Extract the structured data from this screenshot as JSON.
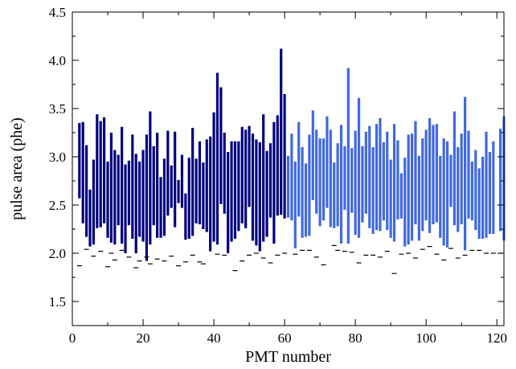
{
  "chart_data": {
    "type": "bar",
    "subtype": "floating-range",
    "title": "",
    "xlabel": "PMT number",
    "ylabel": "pulse area (phe)",
    "xlim": [
      0,
      122
    ],
    "ylim": [
      1.25,
      4.5
    ],
    "xticks": [
      0,
      20,
      40,
      60,
      80,
      100,
      120
    ],
    "yticks": [
      1.5,
      2.0,
      2.5,
      3.0,
      3.5,
      4.0,
      4.5
    ],
    "xtick_labels": [
      "0",
      "20",
      "40",
      "60",
      "80",
      "100",
      "120"
    ],
    "ytick_labels": [
      "1.5",
      "2.0",
      "2.5",
      "3.0",
      "3.5",
      "4.0",
      "4.5"
    ],
    "grid": false,
    "legend": "none",
    "series": [
      {
        "color": "#000080",
        "x": [
          2,
          3,
          4,
          5,
          6,
          7,
          8,
          9,
          10,
          11,
          12,
          13,
          14,
          15,
          16,
          17,
          18,
          19,
          20,
          21,
          22,
          23,
          24,
          25,
          26,
          27,
          28,
          29,
          30,
          31,
          32,
          33,
          34,
          35,
          36,
          37,
          38,
          39,
          40,
          41,
          42,
          43,
          44,
          45,
          46,
          47,
          48,
          49,
          50,
          51,
          52,
          53,
          54,
          55,
          56,
          57,
          58,
          59,
          60
        ],
        "low": [
          2.57,
          2.31,
          2.17,
          2.07,
          2.09,
          2.26,
          2.27,
          2.31,
          2.16,
          2.11,
          2.09,
          2.29,
          2.1,
          2.0,
          2.29,
          2.15,
          2.0,
          2.17,
          2.12,
          1.92,
          2.09,
          2.29,
          2.16,
          2.16,
          2.18,
          2.39,
          2.47,
          2.27,
          2.52,
          2.47,
          2.14,
          2.15,
          2.18,
          2.31,
          2.3,
          2.25,
          2.22,
          2.02,
          2.12,
          2.09,
          2.51,
          2.41,
          2.0,
          2.12,
          2.15,
          2.23,
          2.31,
          2.26,
          2.48,
          2.13,
          2.08,
          2.02,
          2.12,
          2.17,
          2.37,
          2.1,
          2.39,
          2.4,
          2.36
        ],
        "high": [
          3.35,
          3.36,
          3.12,
          2.66,
          2.97,
          3.44,
          3.37,
          3.41,
          2.95,
          3.25,
          3.07,
          3.02,
          3.31,
          2.92,
          2.96,
          3.23,
          3.03,
          2.95,
          3.07,
          3.23,
          3.47,
          3.11,
          3.25,
          2.79,
          2.98,
          3.27,
          2.91,
          3.26,
          2.76,
          3.02,
          2.62,
          2.99,
          3.3,
          2.98,
          3.16,
          2.94,
          3.18,
          3.21,
          3.46,
          3.87,
          3.72,
          3.25,
          3.05,
          3.16,
          3.16,
          3.16,
          3.31,
          3.28,
          3.32,
          3.24,
          3.18,
          3.15,
          3.44,
          3.06,
          3.14,
          3.36,
          3.43,
          4.12,
          3.65
        ]
      },
      {
        "color": "#4169E1",
        "x": [
          61,
          62,
          63,
          64,
          65,
          66,
          67,
          68,
          69,
          70,
          71,
          72,
          73,
          74,
          75,
          76,
          77,
          78,
          79,
          80,
          81,
          82,
          83,
          84,
          85,
          86,
          87,
          88,
          89,
          90,
          91,
          92,
          93,
          94,
          95,
          96,
          97,
          98,
          99,
          100,
          101,
          102,
          103,
          104,
          105,
          106,
          107,
          108,
          109,
          110,
          111,
          112,
          113,
          114,
          115,
          116,
          117,
          118,
          119,
          121,
          122
        ],
        "low": [
          2.37,
          2.34,
          2.05,
          2.38,
          2.16,
          2.17,
          2.18,
          2.55,
          2.41,
          2.28,
          2.34,
          2.47,
          2.27,
          2.26,
          2.28,
          2.1,
          2.45,
          2.1,
          2.42,
          2.19,
          2.16,
          2.32,
          2.41,
          2.26,
          2.2,
          2.24,
          2.23,
          2.34,
          2.24,
          2.16,
          2.12,
          2.35,
          2.36,
          2.07,
          2.09,
          2.13,
          2.3,
          2.13,
          2.23,
          2.34,
          2.21,
          2.3,
          2.32,
          2.16,
          2.08,
          2.06,
          2.48,
          2.29,
          2.22,
          2.3,
          2.03,
          2.36,
          2.34,
          2.24,
          2.15,
          2.15,
          2.16,
          2.2,
          2.2,
          2.23,
          2.13
        ],
        "high": [
          3.01,
          3.24,
          2.95,
          3.36,
          3.1,
          2.93,
          3.23,
          3.48,
          3.28,
          3.19,
          3.19,
          3.42,
          3.28,
          2.94,
          3.14,
          3.33,
          3.11,
          3.92,
          3.09,
          3.27,
          3.61,
          3.11,
          3.26,
          3.32,
          3.1,
          3.34,
          3.4,
          3.15,
          3.26,
          2.97,
          3.34,
          3.17,
          2.83,
          2.99,
          3.23,
          3.24,
          3.37,
          3.01,
          3.19,
          3.28,
          3.4,
          3.33,
          3.34,
          3.01,
          3.19,
          3.16,
          3.02,
          3.47,
          3.1,
          3.24,
          3.62,
          3.27,
          2.95,
          3.07,
          2.88,
          3.0,
          3.26,
          3.05,
          3.16,
          3.29,
          3.42
        ]
      }
    ],
    "minima": {
      "color": "#000000",
      "x": [
        2,
        4,
        6,
        8,
        10,
        11,
        12,
        14,
        16,
        18,
        19,
        21,
        22,
        24,
        26,
        28,
        30,
        32,
        34,
        36,
        37,
        41,
        43,
        46,
        48,
        50,
        52,
        54,
        56,
        58,
        60,
        63,
        65,
        67,
        69,
        71,
        74,
        75,
        77,
        79,
        81,
        83,
        85,
        87,
        89,
        91,
        93,
        95,
        97,
        99,
        101,
        103,
        105,
        107,
        109,
        111,
        113,
        115,
        117,
        119,
        121
      ],
      "y": [
        1.87,
        2.04,
        1.97,
        2.02,
        1.86,
        2.0,
        1.93,
        2.03,
        1.96,
        1.85,
        1.92,
        1.96,
        1.89,
        1.94,
        1.92,
        1.97,
        1.87,
        1.91,
        1.98,
        1.91,
        1.89,
        1.99,
        1.98,
        1.82,
        1.92,
        1.98,
        2.0,
        1.95,
        1.9,
        1.98,
        2.0,
        1.99,
        2.03,
        2.03,
        1.96,
        1.88,
        2.08,
        2.03,
        2.02,
        2.01,
        1.9,
        1.98,
        1.98,
        1.96,
        2.02,
        1.79,
        1.99,
        2.0,
        1.95,
        2.04,
        2.07,
        1.99,
        1.93,
        2.05,
        1.95,
        1.98,
        2.03,
        2.03,
        2.0,
        2.0,
        2.0
      ]
    }
  }
}
